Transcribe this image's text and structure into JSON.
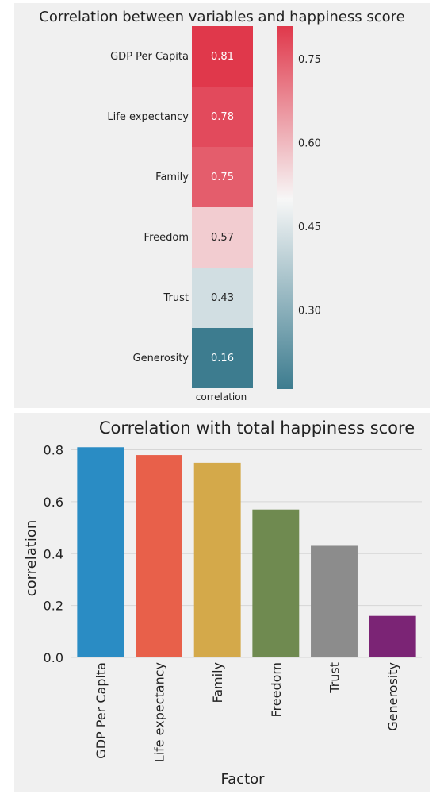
{
  "colors": {
    "background": "#f0f0f0",
    "heatmap_high": "#e0384b",
    "heatmap_mid": "#f7f7f7",
    "heatmap_low": "#3d7c8f",
    "grid": "#d6d6d6",
    "text": "#222222"
  },
  "chart_data": [
    {
      "type": "heatmap",
      "title": "Correlation between variables and happiness score",
      "column": "correlation",
      "rows": [
        "GDP Per Capita",
        "Life expectancy",
        "Family",
        "Freedom",
        "Trust",
        "Generosity"
      ],
      "values": [
        0.81,
        0.78,
        0.75,
        0.57,
        0.43,
        0.16
      ],
      "value_labels": [
        "0.81",
        "0.78",
        "0.75",
        "0.57",
        "0.43",
        "0.16"
      ],
      "colorbar": {
        "range": [
          0.16,
          0.81
        ],
        "center": 0.5,
        "ticks": [
          0.75,
          0.6,
          0.45,
          0.3
        ],
        "tick_labels": [
          "0.75",
          "0.60",
          "0.45",
          "0.30"
        ]
      }
    },
    {
      "type": "bar",
      "title": "Correlation with total happiness score",
      "categories": [
        "GDP Per Capita",
        "Life expectancy",
        "Family",
        "Freedom",
        "Trust",
        "Generosity"
      ],
      "values": [
        0.81,
        0.78,
        0.75,
        0.57,
        0.43,
        0.16
      ],
      "colors": [
        "#2a8cc4",
        "#e8604a",
        "#d4a94a",
        "#6f8a50",
        "#8c8c8c",
        "#7b2475"
      ],
      "xlabel": "Factor",
      "ylabel": "correlation",
      "ylim": [
        0,
        0.82
      ],
      "yticks": [
        0.0,
        0.2,
        0.4,
        0.6,
        0.8
      ],
      "ytick_labels": [
        "0.0",
        "0.2",
        "0.4",
        "0.6",
        "0.8"
      ],
      "grid": true
    }
  ]
}
